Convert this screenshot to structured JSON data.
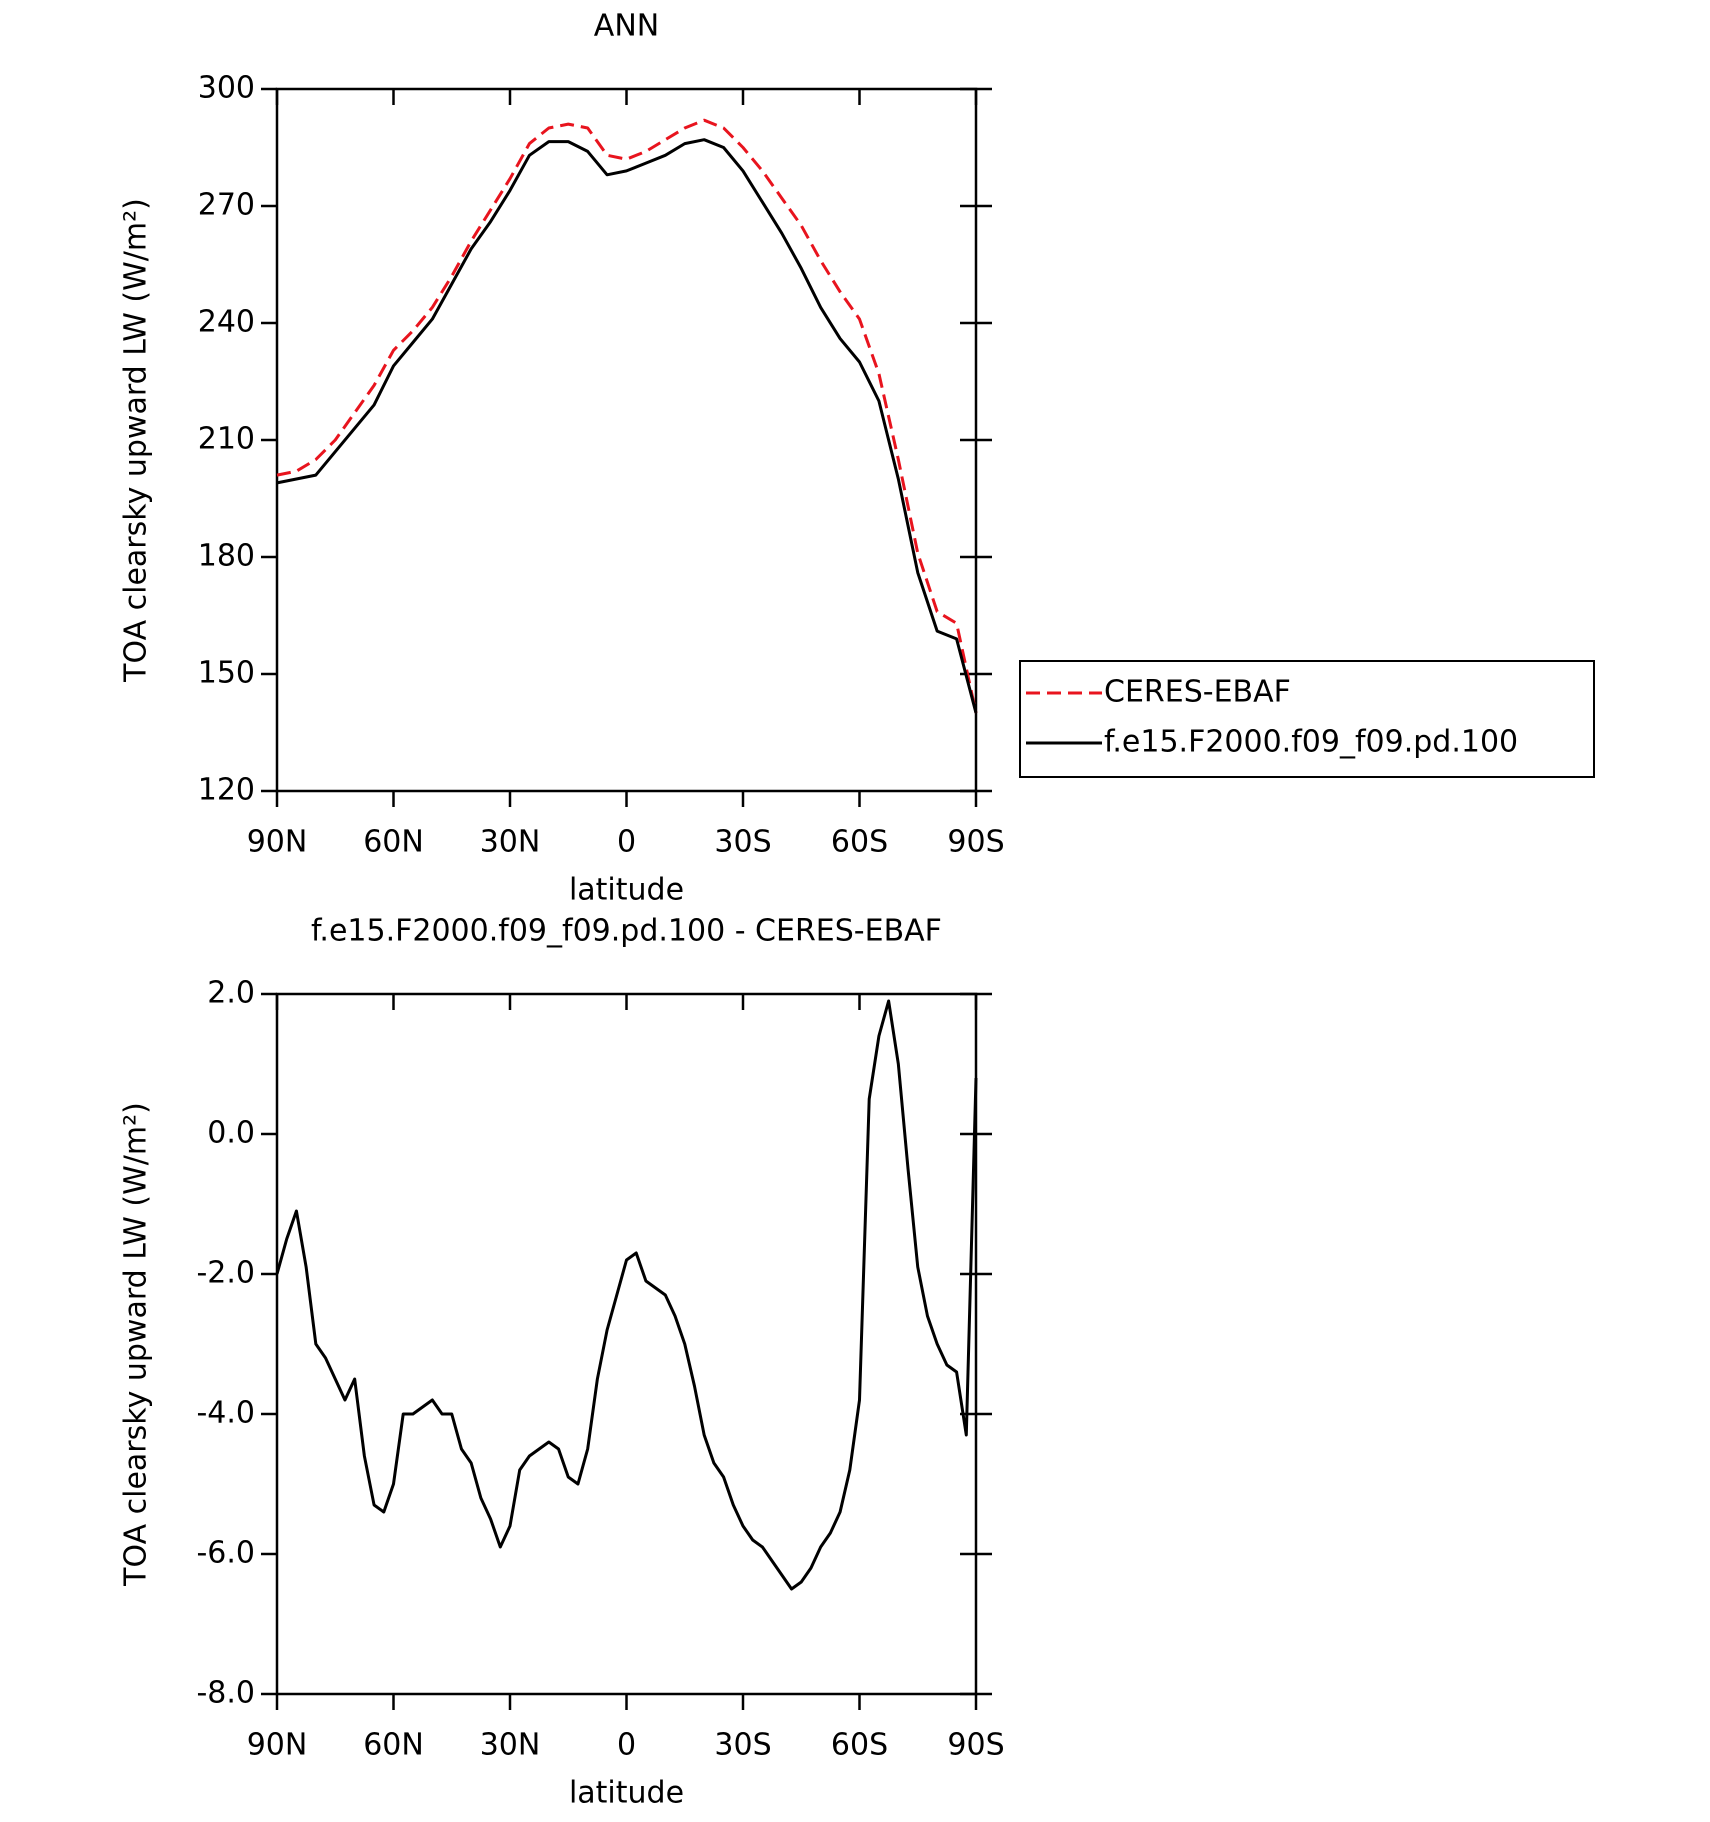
{
  "chart_data": [
    {
      "type": "line",
      "title": "ANN",
      "x_label": "latitude",
      "y_label": "TOA clearsky upward LW (W/m²)",
      "x": [
        90,
        85,
        80,
        75,
        70,
        65,
        60,
        55,
        50,
        45,
        40,
        35,
        30,
        25,
        20,
        15,
        10,
        5,
        0,
        -5,
        -10,
        -15,
        -20,
        -25,
        -30,
        -35,
        -40,
        -45,
        -50,
        -55,
        -60,
        -65,
        -70,
        -75,
        -80,
        -85,
        -90
      ],
      "series": [
        {
          "name": "CERES-EBAF",
          "color": "#e8141e",
          "style": "dashed",
          "values": [
            201,
            202,
            205,
            210,
            217,
            224,
            233,
            238,
            244,
            252,
            261,
            269,
            277,
            286,
            290,
            291,
            290,
            283,
            282,
            284,
            287,
            290,
            292,
            290,
            285,
            279,
            272,
            265,
            256,
            248,
            241,
            227,
            205,
            181,
            166,
            163,
            140
          ]
        },
        {
          "name": "f.e15.F2000.f09_f09.pd.100",
          "color": "#000000",
          "style": "solid",
          "values": [
            199,
            200,
            201,
            207,
            213,
            219,
            229,
            235,
            241,
            250,
            259,
            266,
            274,
            283,
            286.5,
            286.5,
            284,
            278,
            279,
            281,
            283,
            286,
            287,
            285,
            279,
            271,
            263,
            254,
            244,
            236,
            230,
            220,
            200,
            176,
            161,
            159,
            140
          ]
        }
      ],
      "xlim": [
        90,
        -90
      ],
      "xticks": [
        {
          "value": 90,
          "label": "90N"
        },
        {
          "value": 60,
          "label": "60N"
        },
        {
          "value": 30,
          "label": "30N"
        },
        0,
        {
          "value": -30,
          "label": "30S"
        },
        {
          "value": -60,
          "label": "60S"
        },
        {
          "value": -90,
          "label": "90S"
        }
      ],
      "ylim": [
        120,
        300
      ],
      "yticks": [
        120,
        150,
        180,
        210,
        240,
        270,
        300
      ],
      "legend": "right"
    },
    {
      "type": "line",
      "title": "f.e15.F2000.f09_f09.pd.100 - CERES-EBAF",
      "x_label": "latitude",
      "y_label": "TOA clearsky upward LW (W/m²)",
      "x": [
        90,
        87.5,
        85,
        82.5,
        80,
        77.5,
        75,
        72.5,
        70,
        67.5,
        65,
        62.5,
        60,
        57.5,
        55,
        52.5,
        50,
        47.5,
        45,
        42.5,
        40,
        37.5,
        35,
        32.5,
        30,
        27.5,
        25,
        22.5,
        20,
        17.5,
        15,
        12.5,
        10,
        7.5,
        5,
        2.5,
        0,
        -2.5,
        -5,
        -7.5,
        -10,
        -12.5,
        -15,
        -17.5,
        -20,
        -22.5,
        -25,
        -27.5,
        -30,
        -32.5,
        -35,
        -37.5,
        -40,
        -42.5,
        -45,
        -47.5,
        -50,
        -52.5,
        -55,
        -57.5,
        -60,
        -62.5,
        -65,
        -67.5,
        -70,
        -72.5,
        -75,
        -77.5,
        -80,
        -82.5,
        -85,
        -87.5,
        -90
      ],
      "series": [
        {
          "name": "f.e15.F2000.f09_f09.pd.100 - CERES-EBAF",
          "color": "#000000",
          "style": "solid",
          "values": [
            -2.0,
            -1.5,
            -1.1,
            -1.9,
            -3.0,
            -3.2,
            -3.5,
            -3.8,
            -3.5,
            -4.6,
            -5.3,
            -5.4,
            -5.0,
            -4.0,
            -4.0,
            -3.9,
            -3.8,
            -4.0,
            -4.0,
            -4.5,
            -4.7,
            -5.2,
            -5.5,
            -5.9,
            -5.6,
            -4.8,
            -4.6,
            -4.5,
            -4.4,
            -4.5,
            -4.9,
            -5.0,
            -4.5,
            -3.5,
            -2.8,
            -2.3,
            -1.8,
            -1.7,
            -2.1,
            -2.2,
            -2.3,
            -2.6,
            -3.0,
            -3.6,
            -4.3,
            -4.7,
            -4.9,
            -5.3,
            -5.6,
            -5.8,
            -5.9,
            -6.1,
            -6.3,
            -6.5,
            -6.4,
            -6.2,
            -5.9,
            -5.7,
            -5.4,
            -4.8,
            -3.8,
            0.5,
            1.4,
            1.9,
            1.0,
            -0.5,
            -1.9,
            -2.6,
            -3.0,
            -3.3,
            -3.4,
            -4.3,
            0.8
          ]
        }
      ],
      "xlim": [
        90,
        -90
      ],
      "xticks": [
        {
          "value": 90,
          "label": "90N"
        },
        {
          "value": 60,
          "label": "60N"
        },
        {
          "value": 30,
          "label": "30N"
        },
        0,
        {
          "value": -30,
          "label": "30S"
        },
        {
          "value": -60,
          "label": "60S"
        },
        {
          "value": -90,
          "label": "90S"
        }
      ],
      "ylim": [
        -8,
        2
      ],
      "yticks": [
        {
          "value": -8,
          "label": "-8.0"
        },
        {
          "value": -6,
          "label": "-6.0"
        },
        {
          "value": -4,
          "label": "-4.0"
        },
        {
          "value": -2,
          "label": "-2.0"
        },
        {
          "value": 0,
          "label": "0.0"
        },
        {
          "value": 2,
          "label": "2.0"
        }
      ]
    }
  ]
}
